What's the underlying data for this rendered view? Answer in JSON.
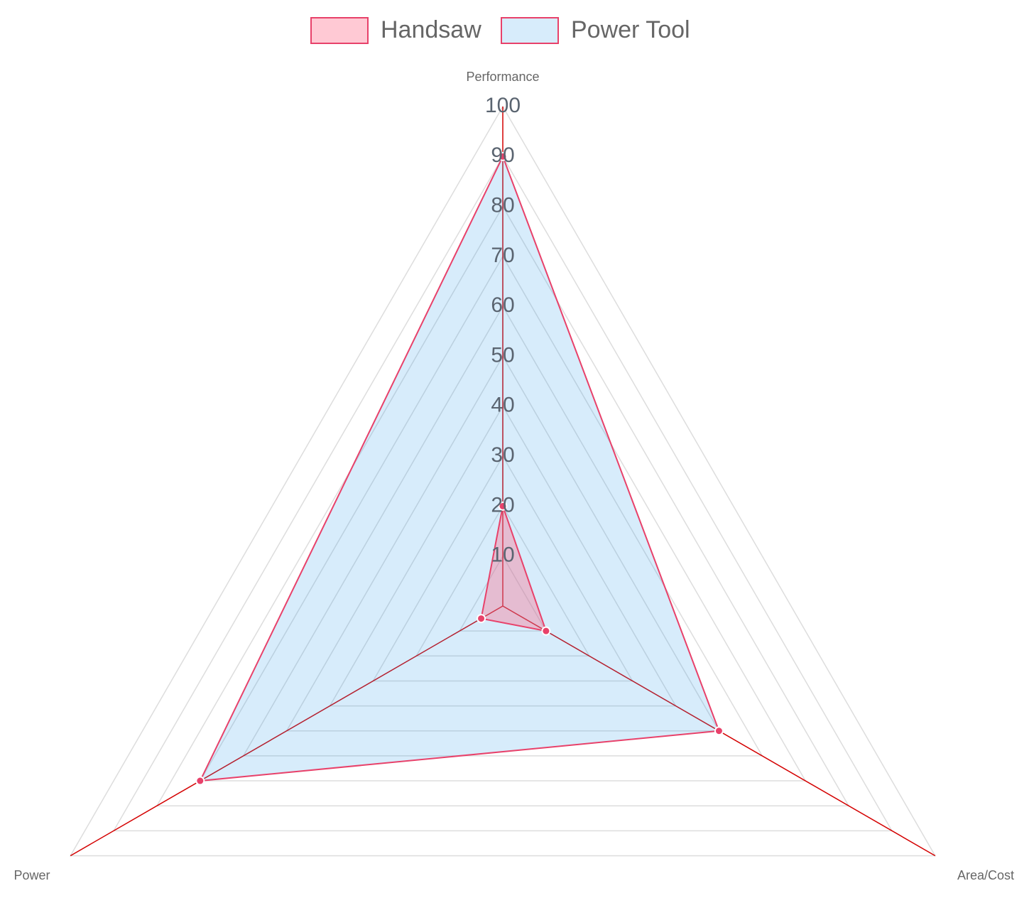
{
  "chart_data": {
    "type": "radar",
    "categories": [
      "Performance",
      "Area/Cost",
      "Power"
    ],
    "series": [
      {
        "name": "Handsaw",
        "color": "#e8416a",
        "fill": "rgba(255,99,132,0.35)",
        "values": [
          20,
          10,
          5
        ]
      },
      {
        "name": "Power Tool",
        "color": "#e8416a",
        "fill": "rgba(54,162,235,0.2)",
        "values": [
          90,
          50,
          70
        ]
      }
    ],
    "rlim": [
      0,
      100
    ],
    "rticks": [
      10,
      20,
      30,
      40,
      50,
      60,
      70,
      80,
      90,
      100
    ],
    "grid": true,
    "angle_line_color": "#d40000",
    "legend": "top"
  }
}
